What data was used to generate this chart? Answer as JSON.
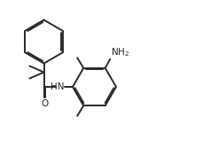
{
  "bg_color": "#ffffff",
  "line_color": "#2a2a2a",
  "line_width": 1.4,
  "text_color": "#2a2a2a",
  "font_size": 7.5,
  "dbo": 0.016
}
